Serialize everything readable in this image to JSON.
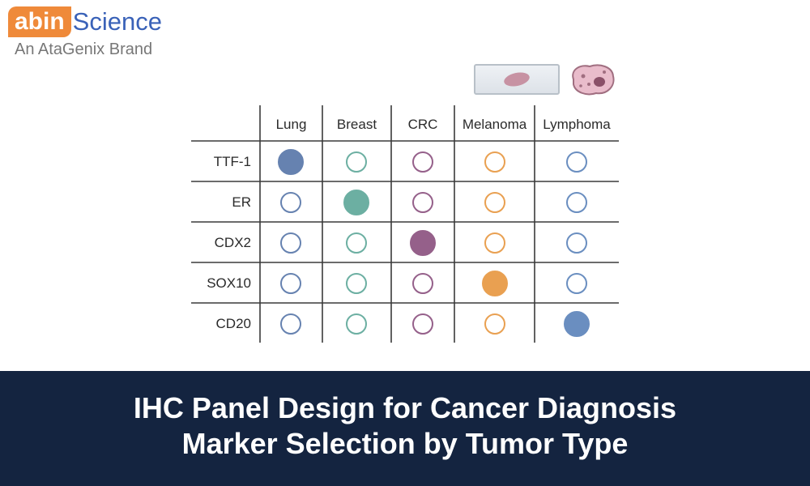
{
  "brand": {
    "mark": "abin",
    "name": "Science",
    "tagline": "An AtaGenix Brand"
  },
  "columns": [
    "Lung",
    "Breast",
    "CRC",
    "Melanoma",
    "Lymphoma"
  ],
  "column_colors": [
    "#6682b0",
    "#6cafa2",
    "#95608a",
    "#e9a051",
    "#6a8ec0"
  ],
  "rows": [
    {
      "label": "TTF-1",
      "positive_column": 0
    },
    {
      "label": "ER",
      "positive_column": 1
    },
    {
      "label": "CDX2",
      "positive_column": 2
    },
    {
      "label": "SOX10",
      "positive_column": 3
    },
    {
      "label": "CD20",
      "positive_column": 4
    }
  ],
  "icons": [
    "microscope-slide-icon",
    "cell-icon"
  ],
  "title": {
    "line1": "IHC Panel Design for Cancer Diagnosis",
    "line2": "Marker Selection by Tumor Type"
  },
  "colors": {
    "banner": "#142440",
    "grid": "#3a3a3a",
    "brand_orange": "#ef8a3a",
    "brand_blue": "#3a62b8"
  }
}
